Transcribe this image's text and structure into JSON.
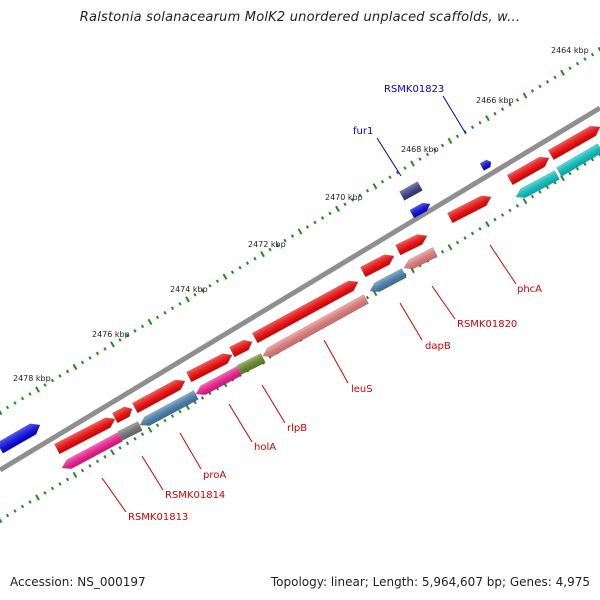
{
  "title": "Ralstonia solanacearum MolK2 unordered unplaced scaffolds, w...",
  "footer": {
    "accession": "Accession: NS_000197",
    "summary": "Topology: linear; Length: 5,964,607 bp; Genes: 4,975"
  },
  "colors": {
    "forward_gene": "#ff0000",
    "reverse_gene": "#f08080",
    "reverse_gene_alt": "#ff1493",
    "blue_gene": "#0000ee",
    "steel_gene": "#4682b4",
    "olive_gene": "#6b8e23",
    "cyan_gene": "#00cccc",
    "gray_gene": "#777777",
    "backbone": "#888888",
    "ticks_minor": "#228b22",
    "label_blue": "#0000cc",
    "label_red": "#cc0000"
  },
  "ruler": {
    "unit": "kbp",
    "ticks": [
      "2464 kbp",
      "2466 kbp",
      "2468 kbp",
      "2470 kbp",
      "2472 kbp",
      "2474 kbp",
      "2476 kbp",
      "2478 kbp"
    ]
  },
  "features": [
    {
      "label": "RSMK01823",
      "color": "blue_gene",
      "label_color": "label_blue"
    },
    {
      "label": "fur1",
      "color": "blue_gene",
      "label_color": "label_blue"
    },
    {
      "label": "phcA",
      "color": "forward_gene",
      "label_color": "label_red"
    },
    {
      "label": "RSMK01820",
      "color": "reverse_gene",
      "label_color": "label_red"
    },
    {
      "label": "dapB",
      "color": "steel_gene",
      "label_color": "label_red"
    },
    {
      "label": "leuS",
      "color": "reverse_gene",
      "label_color": "label_red"
    },
    {
      "label": "rlpB",
      "color": "olive_gene",
      "label_color": "label_red"
    },
    {
      "label": "holA",
      "color": "reverse_gene_alt",
      "label_color": "label_red"
    },
    {
      "label": "proA",
      "color": "steel_gene",
      "label_color": "label_red"
    },
    {
      "label": "RSMK01814",
      "color": "gray_gene",
      "label_color": "label_red"
    },
    {
      "label": "RSMK01813",
      "color": "reverse_gene_alt",
      "label_color": "label_red"
    }
  ]
}
